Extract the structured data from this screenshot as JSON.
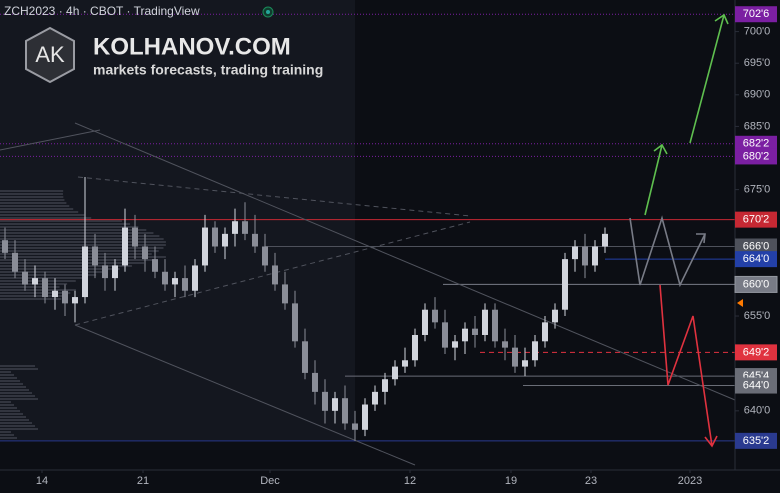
{
  "chart_data": {
    "type": "candlestick",
    "title": "ZCH2023 · 4h · CBOT · TradingView",
    "brand": "KOLHANOV.COM",
    "brand_subtitle": "markets forecasts, trading training",
    "logo": "AK",
    "open": [
      667,
      665,
      662,
      660,
      661,
      658,
      659,
      657,
      658,
      666,
      663,
      661,
      663,
      669,
      666,
      664,
      662,
      660,
      661,
      659,
      663,
      669,
      666,
      668,
      670,
      668,
      666,
      663,
      660,
      657,
      651,
      646,
      643,
      640,
      642,
      638,
      637,
      641,
      643,
      645,
      647,
      648,
      652,
      656,
      654,
      650,
      651,
      653,
      652,
      656,
      651,
      650,
      647,
      648,
      651,
      654,
      656,
      664,
      666,
      663,
      666
    ],
    "high": [
      669,
      667,
      664,
      663,
      662,
      661,
      660,
      659,
      677,
      668,
      665,
      664,
      672,
      671,
      668,
      666,
      664,
      662,
      663,
      664,
      671,
      670,
      669,
      672,
      673,
      671,
      668,
      665,
      662,
      659,
      653,
      648,
      645,
      643,
      644,
      640,
      642,
      644,
      646,
      648,
      650,
      653,
      657,
      658,
      656,
      652,
      654,
      655,
      657,
      657,
      653,
      652,
      650,
      652,
      655,
      657,
      665,
      667,
      668,
      667,
      669
    ],
    "low": [
      664,
      661,
      659,
      658,
      657,
      656,
      655,
      654,
      657,
      661,
      659,
      659,
      662,
      664,
      662,
      661,
      659,
      658,
      658,
      658,
      662,
      665,
      664,
      666,
      667,
      665,
      662,
      659,
      656,
      650,
      645,
      641,
      638,
      638,
      637,
      635.25,
      636,
      640,
      641,
      644,
      646,
      647,
      651,
      653,
      649,
      648,
      649,
      650,
      651,
      650,
      648,
      646,
      645.5,
      647,
      650,
      653,
      655,
      662,
      661,
      662,
      665
    ],
    "close": [
      665,
      662,
      660,
      661,
      658,
      659,
      657,
      658,
      666,
      663,
      661,
      663,
      669,
      666,
      664,
      662,
      660,
      661,
      659,
      663,
      669,
      666,
      668,
      670,
      668,
      666,
      663,
      660,
      657,
      651,
      646,
      643,
      640,
      642,
      638,
      637,
      641,
      643,
      645,
      647,
      648,
      652,
      656,
      654,
      650,
      651,
      653,
      652,
      656,
      651,
      650,
      647,
      648,
      651,
      654,
      656,
      664,
      666,
      663,
      666,
      668
    ],
    "up_color": "#d1d4dc",
    "down_color": "#8a8d97",
    "xlim": [
      -0.5,
      73
    ],
    "ylim": [
      627,
      705
    ],
    "xticks": [
      {
        "value": 3.7,
        "label": "14"
      },
      {
        "value": 13.8,
        "label": "21"
      },
      {
        "value": 26.5,
        "label": "Dec"
      },
      {
        "value": 40.5,
        "label": "12"
      },
      {
        "value": 50.6,
        "label": "19"
      },
      {
        "value": 58.6,
        "label": "23"
      },
      {
        "value": 68.5,
        "label": "2023"
      }
    ],
    "yticks": [
      {
        "value": 700,
        "label": "700'0"
      },
      {
        "value": 695,
        "label": "695'0"
      },
      {
        "value": 690,
        "label": "690'0"
      },
      {
        "value": 685,
        "label": "685'0"
      },
      {
        "value": 675,
        "label": "675'0"
      },
      {
        "value": 655,
        "label": "655'0"
      },
      {
        "value": 640,
        "label": "640'0"
      }
    ],
    "levels": [
      {
        "value": 702.75,
        "label": "702'6",
        "color": "#7b1fa2",
        "dash": "dotted"
      },
      {
        "value": 682.25,
        "label": "682'2",
        "color": "#7b1fa2",
        "dash": "dotted"
      },
      {
        "value": 680.25,
        "label": "680'2",
        "color": "#7b1fa2",
        "dash": "dotted"
      },
      {
        "value": 670.25,
        "label": "670'2",
        "color": "#c62833",
        "dash": "solid"
      },
      {
        "value": 666,
        "label": "666'0",
        "color": "#4e515b",
        "dash": "solid"
      },
      {
        "value": 664,
        "label": "664'0",
        "color": "#2340a8",
        "dash": "solid"
      },
      {
        "value": 660,
        "label": "660'0",
        "color": "#787b86",
        "dash": "solid"
      },
      {
        "value": 649.25,
        "label": "649'2",
        "color": "#e0323f",
        "dash": "dashed"
      },
      {
        "value": 645.5,
        "label": "645'4",
        "color": "#6a6d77",
        "dash": "solid"
      },
      {
        "value": 644,
        "label": "644'0",
        "color": "#6a6d77",
        "dash": "solid"
      },
      {
        "value": 635.25,
        "label": "635'2",
        "color": "#2a3a8f",
        "dash": "solid"
      }
    ]
  }
}
